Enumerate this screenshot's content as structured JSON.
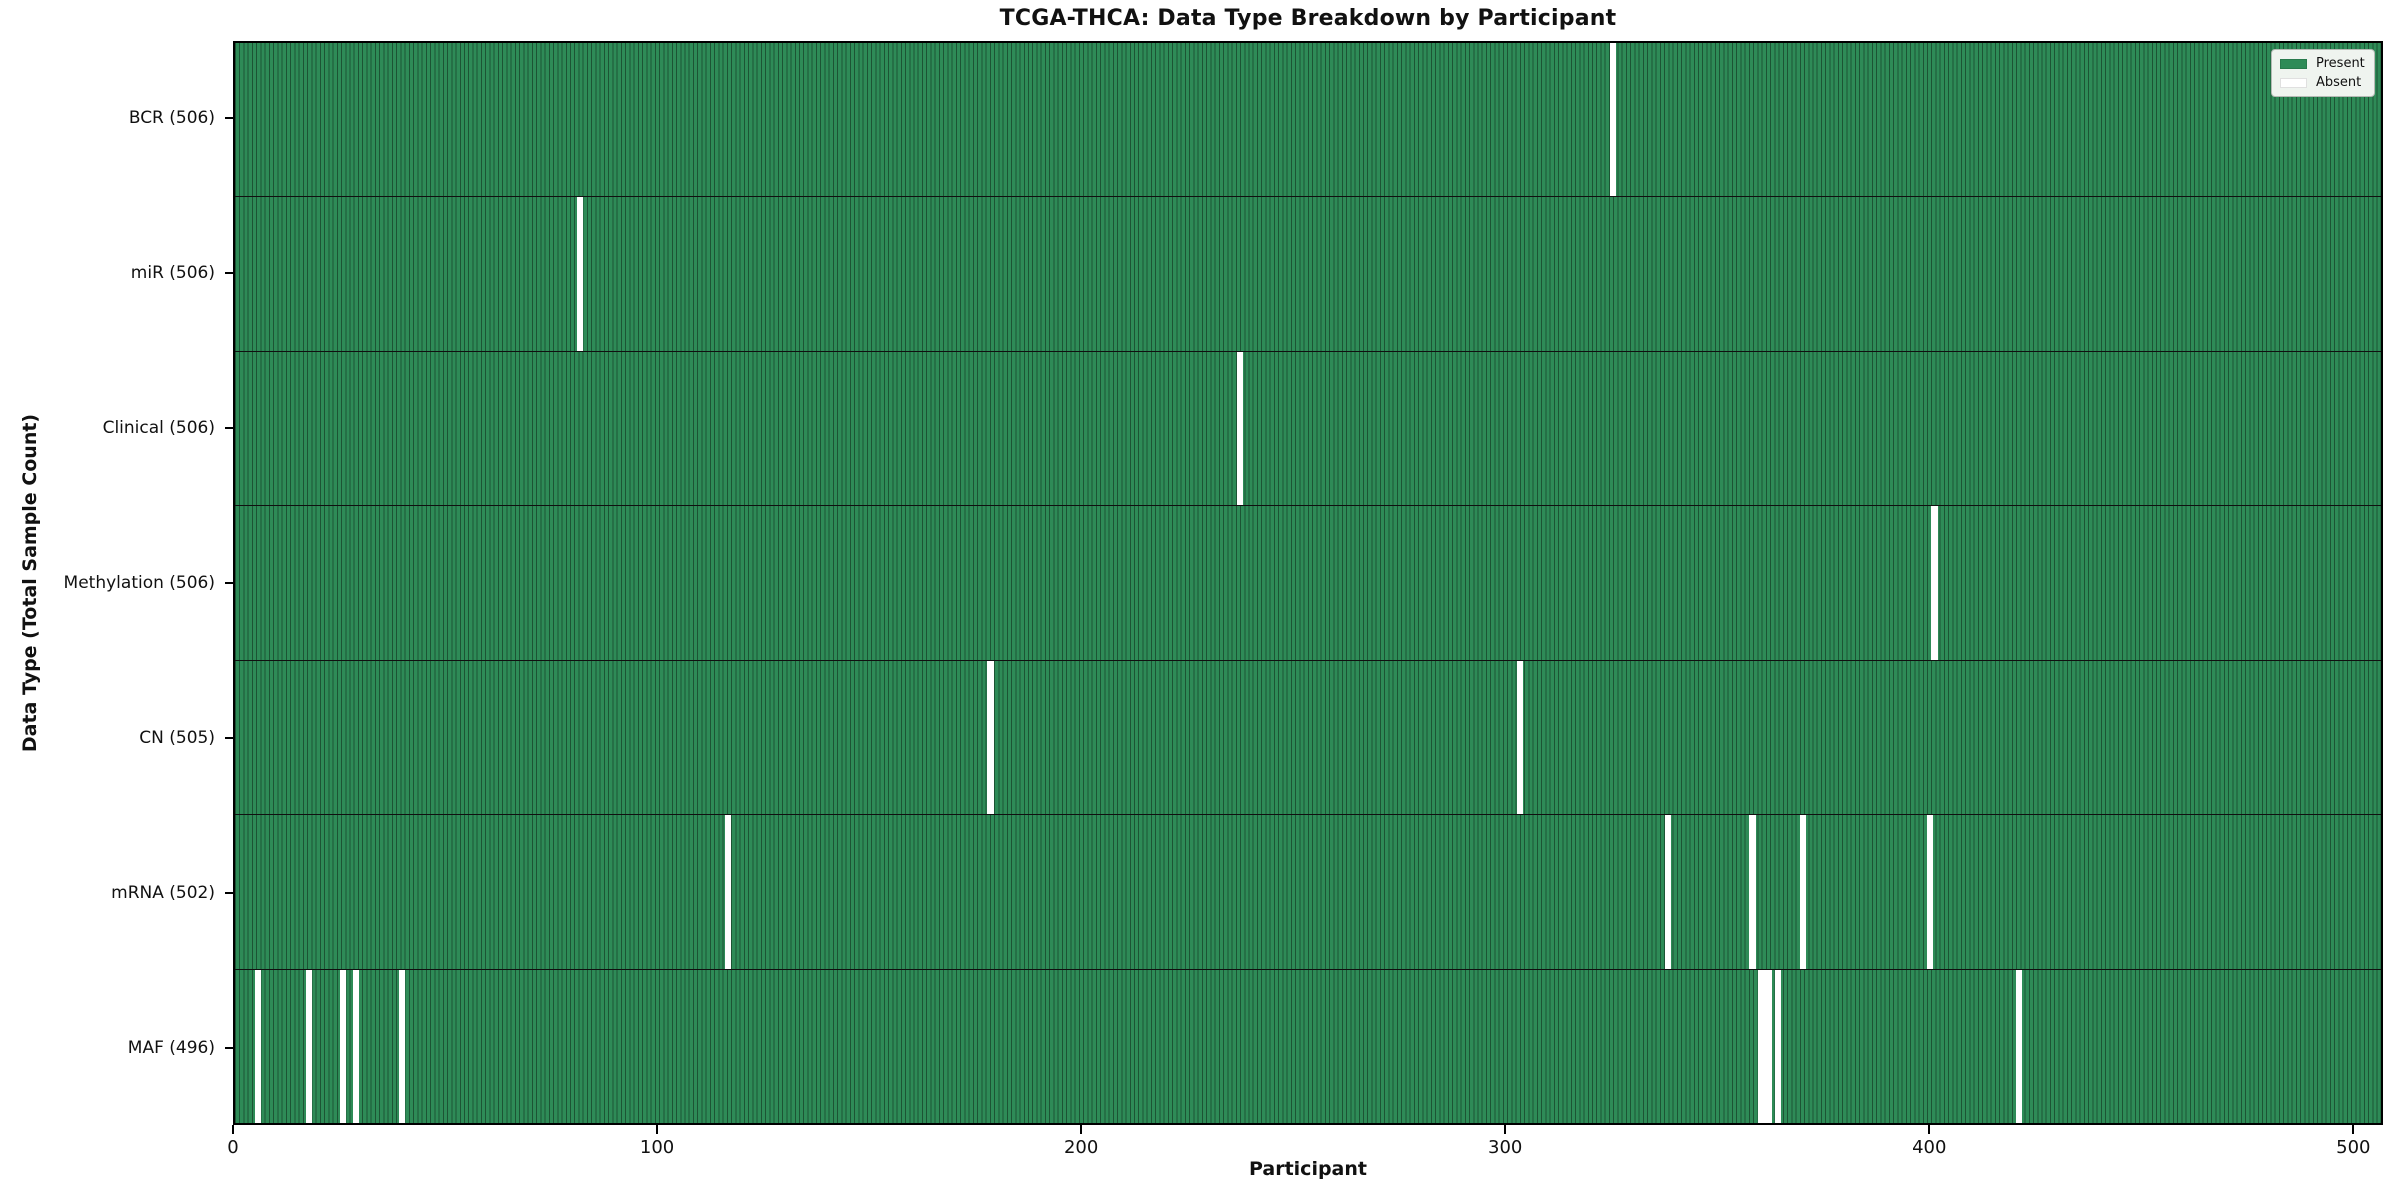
{
  "chart_data": {
    "type": "heatmap",
    "title": "TCGA-THCA: Data Type Breakdown by Participant",
    "xlabel": "Participant",
    "ylabel": "Data Type (Total Sample Count)",
    "n_participants": 506,
    "xlim": [
      0,
      507
    ],
    "x_ticks": [
      0,
      100,
      200,
      300,
      400,
      500
    ],
    "grid": false,
    "legend": {
      "position": "upper right",
      "items": [
        {
          "label": "Present",
          "color": "#2e8b57"
        },
        {
          "label": "Absent",
          "color": "#ffffff"
        }
      ]
    },
    "colors": {
      "present": "#2e8b57",
      "absent": "#ffffff",
      "bar_edge": "#1c5434",
      "row_separator": "#101010"
    },
    "rows": [
      {
        "label": "BCR (506)",
        "data_type": "BCR",
        "total_samples": 506,
        "absent_participants": [
          325
        ]
      },
      {
        "label": "miR (506)",
        "data_type": "miR",
        "total_samples": 506,
        "absent_participants": [
          81
        ]
      },
      {
        "label": "Clinical (506)",
        "data_type": "Clinical",
        "total_samples": 506,
        "absent_participants": [
          237
        ]
      },
      {
        "label": "Methylation (506)",
        "data_type": "Methylation",
        "total_samples": 506,
        "absent_participants": [
          401
        ]
      },
      {
        "label": "CN (505)",
        "data_type": "CN",
        "total_samples": 505,
        "absent_participants": [
          178,
          303
        ]
      },
      {
        "label": "mRNA (502)",
        "data_type": "mRNA",
        "total_samples": 502,
        "absent_participants": [
          116,
          338,
          358,
          370,
          400
        ]
      },
      {
        "label": "MAF (496)",
        "data_type": "MAF",
        "total_samples": 496,
        "absent_participants": [
          5,
          17,
          25,
          28,
          39,
          360,
          361,
          362,
          364,
          421
        ]
      }
    ]
  }
}
